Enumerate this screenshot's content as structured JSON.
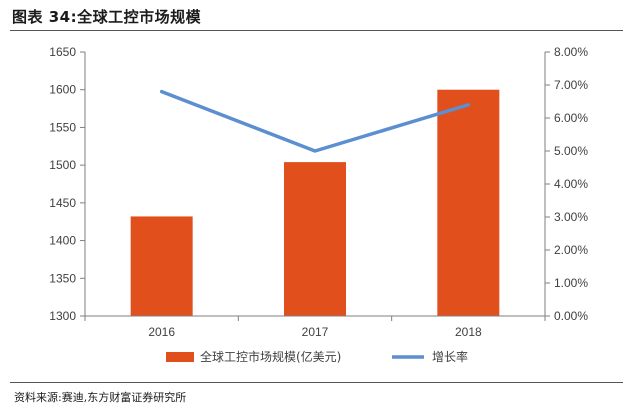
{
  "header": {
    "title": "图表 34:全球工控市场规模"
  },
  "footer": {
    "source": "资料来源:赛迪,东方财富证券研究所"
  },
  "colors": {
    "bar": "#E04F1C",
    "line": "#5B8FD0",
    "axis": "#7f7f7f",
    "text": "#404040"
  },
  "chart_data": {
    "type": "bar+line",
    "title": "全球工控市场规模",
    "categories": [
      "2016",
      "2017",
      "2018"
    ],
    "series": [
      {
        "name": "全球工控市场规模(亿美元)",
        "type": "bar",
        "axis": "left",
        "values": [
          1432,
          1504,
          1600
        ]
      },
      {
        "name": "增长率",
        "type": "line",
        "axis": "right",
        "values": [
          0.068,
          0.05,
          0.064
        ]
      }
    ],
    "y_left": {
      "min": 1300,
      "max": 1650,
      "ticks": [
        "1300",
        "1350",
        "1400",
        "1450",
        "1500",
        "1550",
        "1600",
        "1650"
      ]
    },
    "y_right": {
      "min": 0,
      "max": 0.08,
      "ticks": [
        "0.00%",
        "1.00%",
        "2.00%",
        "3.00%",
        "4.00%",
        "5.00%",
        "6.00%",
        "7.00%",
        "8.00%"
      ]
    },
    "legend_position": "bottom",
    "grid": false
  }
}
